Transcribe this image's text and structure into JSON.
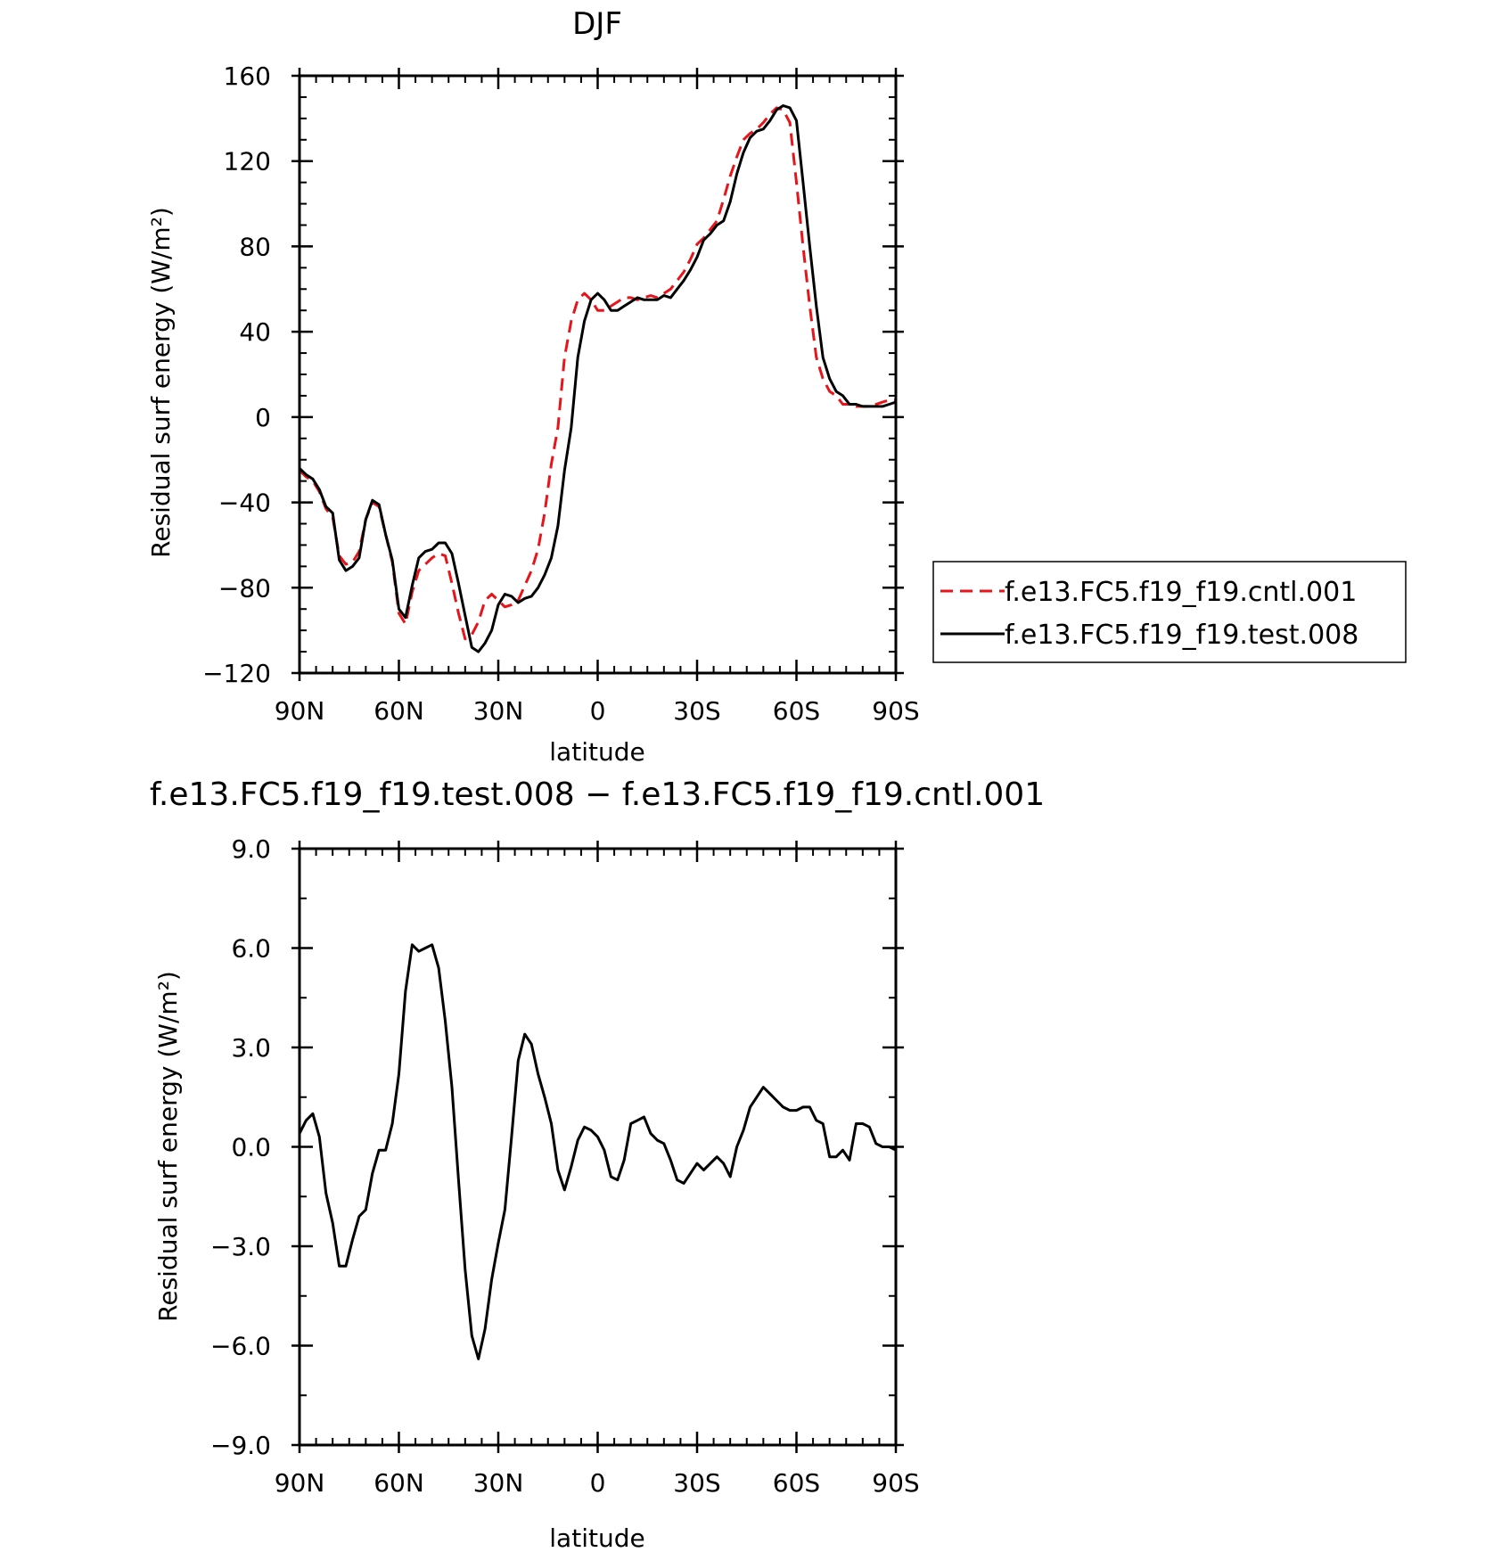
{
  "chart_data": [
    {
      "type": "line",
      "title": "DJF",
      "xlabel": "latitude",
      "ylabel": "Residual surf energy (W/m²)",
      "ylim": [
        -120,
        160
      ],
      "xlim": [
        90,
        -90
      ],
      "yticks": [
        160,
        120,
        80,
        40,
        0,
        -40,
        -80,
        -120
      ],
      "ytick_labels": [
        "160",
        "120",
        "80",
        "40",
        "0",
        "−40",
        "−80",
        "−120"
      ],
      "xticks": [
        90,
        60,
        30,
        0,
        -30,
        -60,
        -90
      ],
      "xtick_labels": [
        "90N",
        "60N",
        "30N",
        "0",
        "30S",
        "60S",
        "90S"
      ],
      "legend_position": "right",
      "grid": false,
      "series": [
        {
          "name": "f.e13.FC5.f19_f19.cntl.001",
          "color": "#e8141a",
          "style": "dashed",
          "x": [
            90,
            88,
            86,
            84,
            82,
            80,
            78,
            76,
            74,
            72,
            70,
            68,
            66,
            64,
            62,
            60,
            58,
            56,
            54,
            52,
            50,
            48,
            46,
            44,
            42,
            40,
            38,
            36,
            34,
            32,
            30,
            28,
            26,
            24,
            22,
            20,
            18,
            16,
            14,
            12,
            10,
            8,
            6,
            4,
            2,
            0,
            -2,
            -4,
            -6,
            -8,
            -10,
            -12,
            -14,
            -16,
            -18,
            -20,
            -22,
            -24,
            -26,
            -28,
            -30,
            -32,
            -34,
            -36,
            -38,
            -40,
            -42,
            -44,
            -46,
            -48,
            -50,
            -52,
            -54,
            -56,
            -58,
            -60,
            -62,
            -64,
            -66,
            -68,
            -70,
            -72,
            -74,
            -76,
            -78,
            -80,
            -82,
            -84,
            -86,
            -88,
            -90
          ],
          "values": [
            -25,
            -28,
            -30,
            -35,
            -43,
            -47,
            -65,
            -69,
            -68,
            -63,
            -48,
            -40,
            -42,
            -55,
            -68,
            -92,
            -97,
            -82,
            -72,
            -69,
            -66,
            -64,
            -65,
            -78,
            -92,
            -104,
            -102,
            -96,
            -86,
            -83,
            -86,
            -89,
            -88,
            -86,
            -79,
            -72,
            -62,
            -45,
            -22,
            -5,
            28,
            45,
            55,
            58,
            55,
            50,
            50,
            52,
            54,
            56,
            56,
            55,
            56,
            57,
            56,
            58,
            60,
            64,
            68,
            74,
            81,
            84,
            88,
            92,
            102,
            113,
            122,
            130,
            133,
            135,
            138,
            142,
            145,
            144,
            138,
            110,
            80,
            52,
            28,
            18,
            12,
            10,
            6,
            6,
            5,
            5,
            5,
            6,
            7,
            8,
            8
          ]
        },
        {
          "name": "f.e13.FC5.f19_f19.test.008",
          "color": "#000000",
          "style": "solid",
          "x": [
            90,
            88,
            86,
            84,
            82,
            80,
            78,
            76,
            74,
            72,
            70,
            68,
            66,
            64,
            62,
            60,
            58,
            56,
            54,
            52,
            50,
            48,
            46,
            44,
            42,
            40,
            38,
            36,
            34,
            32,
            30,
            28,
            26,
            24,
            22,
            20,
            18,
            16,
            14,
            12,
            10,
            8,
            6,
            4,
            2,
            0,
            -2,
            -4,
            -6,
            -8,
            -10,
            -12,
            -14,
            -16,
            -18,
            -20,
            -22,
            -24,
            -26,
            -28,
            -30,
            -32,
            -34,
            -36,
            -38,
            -40,
            -42,
            -44,
            -46,
            -48,
            -50,
            -52,
            -54,
            -56,
            -58,
            -60,
            -62,
            -64,
            -66,
            -68,
            -70,
            -72,
            -74,
            -76,
            -78,
            -80,
            -82,
            -84,
            -86,
            -88,
            -90
          ],
          "values": [
            -24,
            -27,
            -29,
            -34,
            -42,
            -45,
            -67,
            -72,
            -70,
            -66,
            -48,
            -39,
            -41,
            -55,
            -67,
            -90,
            -94,
            -79,
            -66,
            -63,
            -62,
            -59,
            -59,
            -64,
            -78,
            -93,
            -108,
            -110,
            -106,
            -100,
            -88,
            -83,
            -84,
            -87,
            -85,
            -84,
            -80,
            -74,
            -66,
            -51,
            -25,
            -5,
            28,
            45,
            55,
            58,
            55,
            50,
            50,
            52,
            54,
            56,
            55,
            55,
            55,
            57,
            56,
            60,
            64,
            69,
            75,
            83,
            86,
            90,
            92,
            101,
            114,
            124,
            131,
            134,
            135,
            139,
            144,
            146,
            145,
            139,
            110,
            80,
            52,
            28,
            18,
            12,
            10,
            6,
            6,
            5,
            5,
            5,
            5,
            6,
            7
          ]
        }
      ]
    },
    {
      "type": "line",
      "title": "f.e13.FC5.f19_f19.test.008 − f.e13.FC5.f19_f19.cntl.001",
      "xlabel": "latitude",
      "ylabel": "Residual surf energy (W/m²)",
      "ylim": [
        -9,
        9
      ],
      "xlim": [
        90,
        -90
      ],
      "yticks": [
        9,
        6,
        3,
        0,
        -3,
        -6,
        -9
      ],
      "ytick_labels": [
        "9.0",
        "6.0",
        "3.0",
        "0.0",
        "−3.0",
        "−6.0",
        "−9.0"
      ],
      "xticks": [
        90,
        60,
        30,
        0,
        -30,
        -60,
        -90
      ],
      "xtick_labels": [
        "90N",
        "60N",
        "30N",
        "0",
        "30S",
        "60S",
        "90S"
      ],
      "grid": false,
      "series": [
        {
          "color": "#000000",
          "style": "solid",
          "x": [
            90,
            88,
            86,
            84,
            82,
            80,
            78,
            76,
            74,
            72,
            70,
            68,
            66,
            64,
            62,
            60,
            58,
            56,
            54,
            52,
            50,
            48,
            46,
            44,
            42,
            40,
            38,
            36,
            34,
            32,
            30,
            28,
            26,
            24,
            22,
            20,
            18,
            16,
            14,
            12,
            10,
            8,
            6,
            4,
            2,
            0,
            -2,
            -4,
            -6,
            -8,
            -10,
            -12,
            -14,
            -16,
            -18,
            -20,
            -22,
            -24,
            -26,
            -28,
            -30,
            -32,
            -34,
            -36,
            -38,
            -40,
            -42,
            -44,
            -46,
            -48,
            -50,
            -52,
            -54,
            -56,
            -58,
            -60,
            -62,
            -64,
            -66,
            -68,
            -70,
            -72,
            -74,
            -76,
            -78,
            -80,
            -82,
            -84,
            -86,
            -88,
            -90
          ],
          "values": [
            0.4,
            0.8,
            1.0,
            0.3,
            -1.4,
            -2.3,
            -3.6,
            -3.6,
            -2.8,
            -2.1,
            -1.9,
            -0.8,
            -0.1,
            -0.1,
            0.7,
            2.2,
            4.7,
            6.1,
            5.9,
            6.0,
            6.1,
            5.4,
            3.8,
            1.8,
            -1.0,
            -3.7,
            -5.7,
            -6.4,
            -5.5,
            -4.0,
            -2.9,
            -1.9,
            0.3,
            2.6,
            3.4,
            3.1,
            2.2,
            1.5,
            0.7,
            -0.7,
            -1.3,
            -0.6,
            0.2,
            0.6,
            0.5,
            0.3,
            -0.1,
            -0.9,
            -1.0,
            -0.4,
            0.7,
            0.8,
            0.9,
            0.4,
            0.2,
            0.1,
            -0.4,
            -1.0,
            -1.1,
            -0.8,
            -0.5,
            -0.7,
            -0.5,
            -0.3,
            -0.5,
            -0.9,
            0.0,
            0.5,
            1.2,
            1.5,
            1.8,
            1.6,
            1.4,
            1.2,
            1.1,
            1.1,
            1.2,
            1.2,
            0.8,
            0.7,
            -0.3,
            -0.3,
            -0.1,
            -0.4,
            0.7,
            0.7,
            0.6,
            0.1,
            0.0,
            0.0,
            -0.1
          ]
        }
      ]
    }
  ]
}
